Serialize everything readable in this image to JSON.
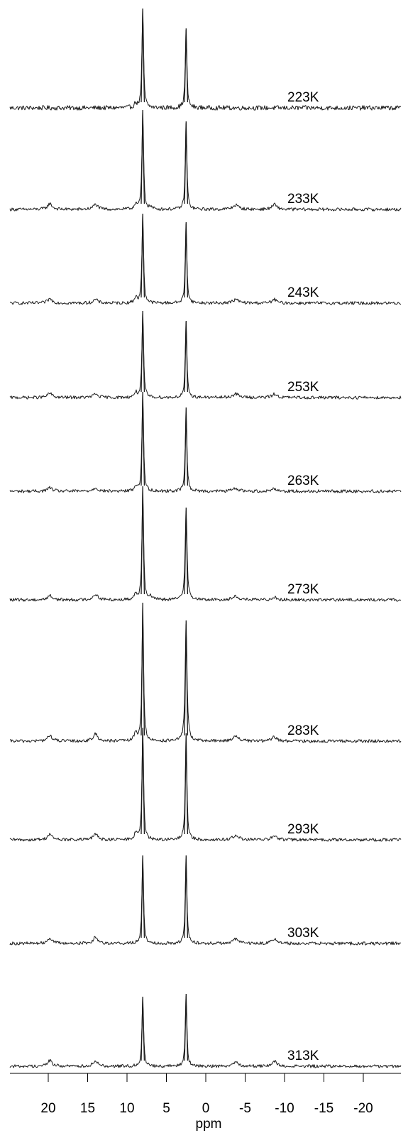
{
  "chart_data": {
    "type": "line",
    "title": "",
    "xlabel": "ppm",
    "ylabel": "",
    "x_reversed": true,
    "xlim": [
      25,
      -25
    ],
    "xticks": [
      20,
      15,
      10,
      5,
      0,
      -5,
      -10,
      -15,
      -20
    ],
    "xtick_labels": [
      "20",
      "15",
      "10",
      "5",
      "0",
      "-5",
      "-10",
      "-15",
      "-20"
    ],
    "grid": false,
    "legend": "none",
    "line_color": "#1a1a1a",
    "series": [
      {
        "name": "223K",
        "peaks": [
          {
            "ppm": 8.0,
            "height": 140,
            "width": 0.12
          },
          {
            "ppm": 2.5,
            "height": 112,
            "width": 0.12
          },
          {
            "ppm": 8.9,
            "height": 6,
            "width": 0.2
          }
        ]
      },
      {
        "name": "233K",
        "peaks": [
          {
            "ppm": 8.0,
            "height": 140,
            "width": 0.12
          },
          {
            "ppm": 2.5,
            "height": 124,
            "width": 0.12
          },
          {
            "ppm": 19.8,
            "height": 8,
            "width": 0.35
          },
          {
            "ppm": 14.0,
            "height": 7,
            "width": 0.35
          },
          {
            "ppm": 8.9,
            "height": 8,
            "width": 0.2
          },
          {
            "ppm": 7.0,
            "height": 3,
            "width": 0.2
          },
          {
            "ppm": -3.8,
            "height": 6,
            "width": 0.45
          },
          {
            "ppm": -8.7,
            "height": 7,
            "width": 0.35
          }
        ]
      },
      {
        "name": "243K",
        "peaks": [
          {
            "ppm": 8.0,
            "height": 126,
            "width": 0.12
          },
          {
            "ppm": 2.5,
            "height": 114,
            "width": 0.12
          },
          {
            "ppm": 19.8,
            "height": 6,
            "width": 0.35
          },
          {
            "ppm": 14.0,
            "height": 5,
            "width": 0.35
          },
          {
            "ppm": 8.9,
            "height": 8,
            "width": 0.2
          },
          {
            "ppm": -3.8,
            "height": 5,
            "width": 0.45
          },
          {
            "ppm": -8.7,
            "height": 5,
            "width": 0.35
          }
        ]
      },
      {
        "name": "253K",
        "peaks": [
          {
            "ppm": 8.0,
            "height": 122,
            "width": 0.12
          },
          {
            "ppm": 2.5,
            "height": 108,
            "width": 0.12
          },
          {
            "ppm": 19.8,
            "height": 6,
            "width": 0.35
          },
          {
            "ppm": 14.0,
            "height": 5,
            "width": 0.35
          },
          {
            "ppm": 8.9,
            "height": 7,
            "width": 0.2
          },
          {
            "ppm": -3.8,
            "height": 5,
            "width": 0.45
          },
          {
            "ppm": -8.7,
            "height": 5,
            "width": 0.35
          }
        ]
      },
      {
        "name": "263K",
        "peaks": [
          {
            "ppm": 8.0,
            "height": 140,
            "width": 0.12
          },
          {
            "ppm": 2.5,
            "height": 118,
            "width": 0.12
          },
          {
            "ppm": 19.8,
            "height": 5,
            "width": 0.35
          },
          {
            "ppm": 14.0,
            "height": 5,
            "width": 0.35
          },
          {
            "ppm": 8.9,
            "height": 7,
            "width": 0.2
          },
          {
            "ppm": -3.8,
            "height": 4,
            "width": 0.45
          },
          {
            "ppm": -8.7,
            "height": 4,
            "width": 0.35
          }
        ]
      },
      {
        "name": "273K",
        "peaks": [
          {
            "ppm": 8.0,
            "height": 160,
            "width": 0.12
          },
          {
            "ppm": 2.5,
            "height": 130,
            "width": 0.14
          },
          {
            "ppm": 19.8,
            "height": 6,
            "width": 0.35
          },
          {
            "ppm": 14.0,
            "height": 8,
            "width": 0.35
          },
          {
            "ppm": 8.9,
            "height": 9,
            "width": 0.2
          },
          {
            "ppm": 7.0,
            "height": 5,
            "width": 0.2
          },
          {
            "ppm": -3.8,
            "height": 5,
            "width": 0.45
          },
          {
            "ppm": -8.7,
            "height": 4,
            "width": 0.35
          }
        ]
      },
      {
        "name": "283K",
        "peaks": [
          {
            "ppm": 8.0,
            "height": 195,
            "width": 0.12
          },
          {
            "ppm": 2.5,
            "height": 170,
            "width": 0.14
          },
          {
            "ppm": 19.8,
            "height": 8,
            "width": 0.35
          },
          {
            "ppm": 14.0,
            "height": 10,
            "width": 0.35
          },
          {
            "ppm": 8.9,
            "height": 12,
            "width": 0.2
          },
          {
            "ppm": -3.8,
            "height": 7,
            "width": 0.45
          },
          {
            "ppm": -8.7,
            "height": 6,
            "width": 0.35
          }
        ]
      },
      {
        "name": "293K",
        "peaks": [
          {
            "ppm": 8.0,
            "height": 158,
            "width": 0.12
          },
          {
            "ppm": 2.5,
            "height": 150,
            "width": 0.12
          },
          {
            "ppm": 19.8,
            "height": 8,
            "width": 0.35
          },
          {
            "ppm": 14.0,
            "height": 8,
            "width": 0.35
          },
          {
            "ppm": 8.9,
            "height": 9,
            "width": 0.2
          },
          {
            "ppm": -3.8,
            "height": 6,
            "width": 0.45
          },
          {
            "ppm": -8.7,
            "height": 6,
            "width": 0.35
          }
        ]
      },
      {
        "name": "303K",
        "peaks": [
          {
            "ppm": 8.0,
            "height": 124,
            "width": 0.12
          },
          {
            "ppm": 2.5,
            "height": 124,
            "width": 0.12
          },
          {
            "ppm": 19.8,
            "height": 8,
            "width": 0.35
          },
          {
            "ppm": 14.0,
            "height": 9,
            "width": 0.35
          },
          {
            "ppm": -3.8,
            "height": 6,
            "width": 0.45
          },
          {
            "ppm": -8.7,
            "height": 7,
            "width": 0.35
          }
        ]
      },
      {
        "name": "313K",
        "peaks": [
          {
            "ppm": 8.0,
            "height": 98,
            "width": 0.12
          },
          {
            "ppm": 2.5,
            "height": 102,
            "width": 0.12
          },
          {
            "ppm": 19.8,
            "height": 8,
            "width": 0.35
          },
          {
            "ppm": 14.0,
            "height": 8,
            "width": 0.35
          },
          {
            "ppm": -3.8,
            "height": 6,
            "width": 0.45
          },
          {
            "ppm": -8.7,
            "height": 7,
            "width": 0.35
          }
        ]
      }
    ]
  }
}
